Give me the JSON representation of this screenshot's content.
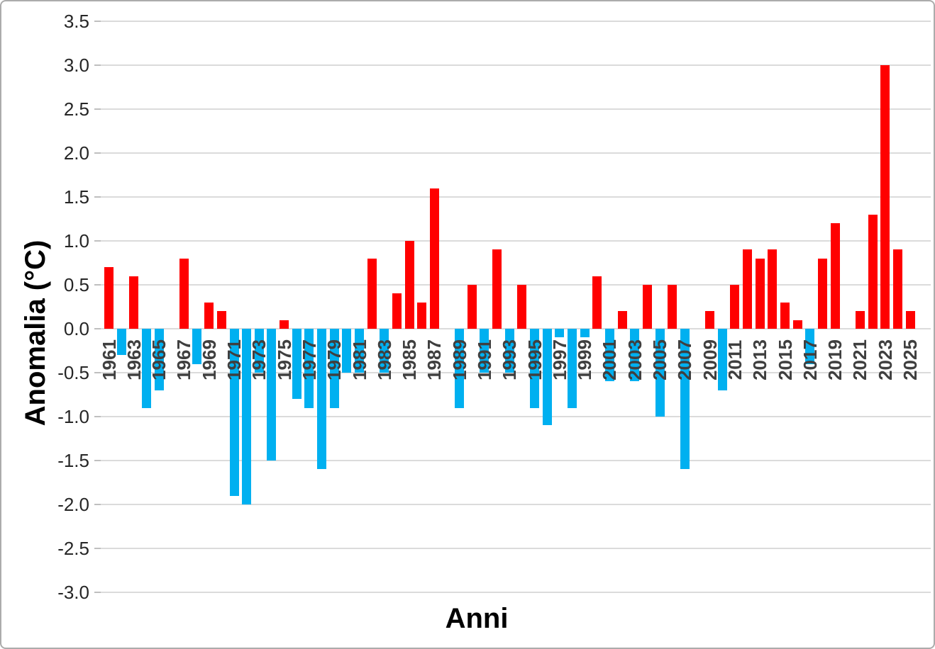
{
  "chart_data": {
    "type": "bar",
    "title": "",
    "xlabel": "Anni",
    "ylabel": "Anomalia (°C)",
    "x": [
      1961,
      1962,
      1963,
      1964,
      1965,
      1966,
      1967,
      1968,
      1969,
      1970,
      1971,
      1972,
      1973,
      1974,
      1975,
      1976,
      1977,
      1978,
      1979,
      1980,
      1981,
      1982,
      1983,
      1984,
      1985,
      1986,
      1987,
      1988,
      1989,
      1990,
      1991,
      1992,
      1993,
      1994,
      1995,
      1996,
      1997,
      1998,
      1999,
      2000,
      2001,
      2002,
      2003,
      2004,
      2005,
      2006,
      2007,
      2008,
      2009,
      2010,
      2011,
      2012,
      2013,
      2014,
      2015,
      2016,
      2017,
      2018,
      2019,
      2020,
      2021,
      2022,
      2023,
      2024,
      2025
    ],
    "values": [
      0.7,
      -0.3,
      0.6,
      -0.9,
      -0.7,
      0,
      0.8,
      -0.4,
      0.3,
      0.2,
      -1.9,
      -2.0,
      -0.5,
      -1.5,
      0.1,
      -0.8,
      -0.9,
      -1.6,
      -0.9,
      -0.5,
      -0.5,
      0.8,
      -0.5,
      0.4,
      1.0,
      0.3,
      1.6,
      0,
      -0.9,
      0.5,
      -0.5,
      0.9,
      -0.5,
      0.5,
      -0.9,
      -1.1,
      -0.1,
      -0.9,
      -0.1,
      0.6,
      -0.6,
      0.2,
      -0.6,
      0.5,
      -1.0,
      0.5,
      -1.6,
      0,
      0.2,
      -0.7,
      0.5,
      0.9,
      0.8,
      0.9,
      0.3,
      0.1,
      -0.4,
      0.8,
      1.2,
      0,
      0.2,
      1.3,
      3.0,
      0.9,
      0.2
    ],
    "years_without_bar": [
      1966,
      1988,
      2008,
      2020
    ],
    "xtick_labels": [
      "1961",
      "1963",
      "1965",
      "1967",
      "1969",
      "1971",
      "1973",
      "1975",
      "1977",
      "1979",
      "1981",
      "1983",
      "1985",
      "1987",
      "1989",
      "1991",
      "1993",
      "1995",
      "1997",
      "1999",
      "2001",
      "2003",
      "2005",
      "2007",
      "2009",
      "2011",
      "2013",
      "2015",
      "2017",
      "2019",
      "2021",
      "2023",
      "2025"
    ],
    "yticks": [
      3.5,
      3.0,
      2.5,
      2.0,
      1.5,
      1.0,
      0.5,
      0.0,
      -0.5,
      -1.0,
      -1.5,
      -2.0,
      -2.5,
      -3.0
    ],
    "ylim": [
      -3.0,
      3.5
    ],
    "grid": "horizontal",
    "legend": "none",
    "positive_color": "#ff0000",
    "negative_color": "#00b0f0",
    "gridline_color": "#dbdbdb",
    "tick_color": "#bfbfbf",
    "axis_label_color": "#262626",
    "year_label_color": "#3f3f3f"
  }
}
